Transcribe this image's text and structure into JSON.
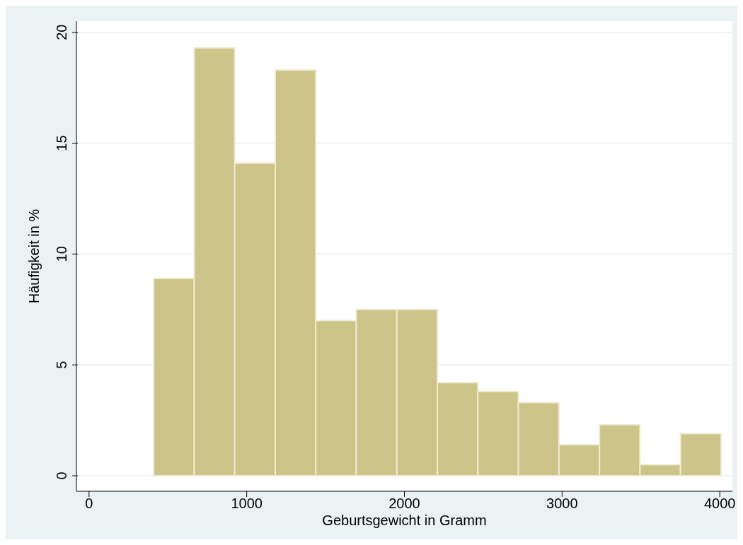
{
  "chart_data": {
    "type": "histogram",
    "xlabel": "Geburtsgewicht in Gramm",
    "ylabel": "Häufigkeit in %",
    "bins": [
      410,
      667,
      924,
      1181,
      1438,
      1695,
      1952,
      2209,
      2466,
      2723,
      2980,
      3237,
      3494,
      3751,
      4008
    ],
    "values": [
      8.9,
      19.3,
      14.1,
      18.3,
      7.0,
      7.5,
      7.5,
      4.2,
      3.8,
      3.3,
      1.4,
      2.3,
      0.5,
      1.9
    ],
    "color": "#cdc48a",
    "xlim": [
      -80,
      4080
    ],
    "xticks": [
      0,
      1000,
      2000,
      3000,
      4000
    ],
    "ylim": [
      -0.7,
      20.5
    ],
    "yticks": [
      0,
      5,
      10,
      15,
      20
    ],
    "grid": "y"
  }
}
